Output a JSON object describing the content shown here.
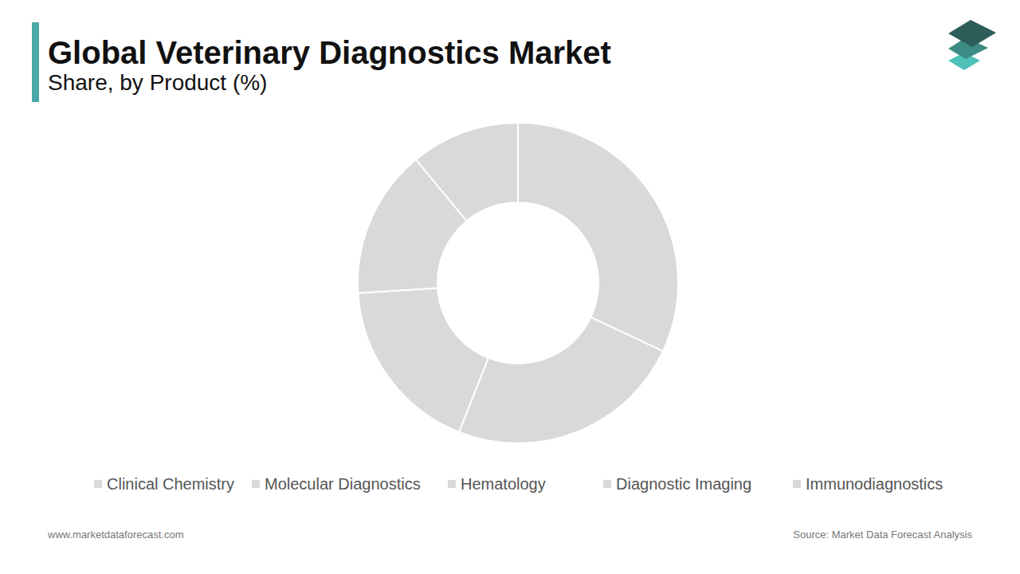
{
  "chart_data": {
    "type": "donut",
    "title": "Global Veterinary Diagnostics Market",
    "subtitle": "Share, by Product (%)",
    "categories": [
      "Clinical Chemistry",
      "Molecular Diagnostics",
      "Hematology",
      "Diagnostic Imaging",
      "Immunodiagnostics"
    ],
    "values": [
      32,
      24,
      18,
      15,
      11
    ],
    "colors": [
      "#d9d9d9",
      "#d9d9d9",
      "#d9d9d9",
      "#d9d9d9",
      "#d9d9d9"
    ],
    "legend": "bottom",
    "website": "www.marketdataforecast.com",
    "source": "Source: Market Data Forecast Analysis"
  }
}
